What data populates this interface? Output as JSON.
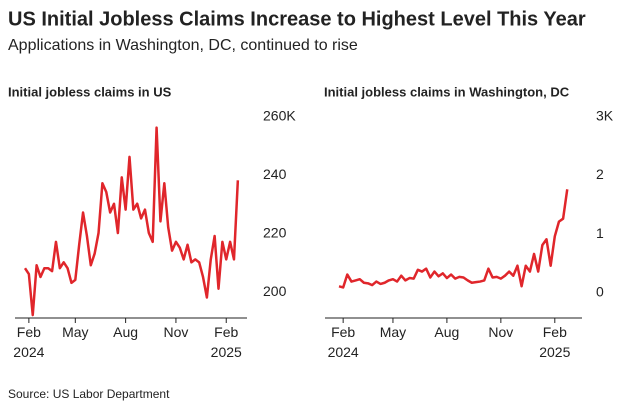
{
  "title": "US Initial Jobless Claims Increase to Highest Level This Year",
  "subtitle": "Applications in Washington, DC, continued to rise",
  "source": "Source: US Labor Department",
  "chart_data": [
    {
      "type": "line",
      "title": "Initial jobless claims in US",
      "color": "#e0262b",
      "categories": [
        null,
        "Feb 2024",
        null,
        null,
        null,
        null,
        null,
        null,
        null,
        null,
        null,
        null,
        null,
        "May",
        null,
        null,
        null,
        null,
        null,
        null,
        null,
        null,
        null,
        null,
        null,
        null,
        "Aug",
        null,
        null,
        null,
        null,
        null,
        null,
        null,
        null,
        null,
        null,
        null,
        null,
        "Nov",
        null,
        null,
        null,
        null,
        null,
        null,
        null,
        null,
        null,
        null,
        null,
        null,
        "Feb 2025",
        null,
        null,
        null
      ],
      "values": [
        210,
        208,
        194,
        211,
        207,
        210,
        210,
        209,
        219,
        210,
        212,
        210,
        205,
        206,
        218,
        229,
        221,
        211,
        215,
        222,
        239,
        236,
        229,
        232,
        222,
        241,
        230,
        248,
        230,
        232,
        227,
        230,
        222,
        219,
        258,
        226,
        239,
        224,
        216,
        219,
        217,
        213,
        218,
        212,
        213,
        212,
        207,
        200,
        213,
        221,
        203,
        219,
        213,
        219,
        213,
        240
      ],
      "ylim": [
        193,
        264
      ],
      "yticks": [
        200,
        220,
        240,
        {
          "value": 260,
          "label": "260K"
        }
      ]
    },
    {
      "type": "line",
      "title": "Initial jobless claims in Washington, DC",
      "color": "#e0262b",
      "categories": [
        null,
        "Feb 2024",
        null,
        null,
        null,
        null,
        null,
        null,
        null,
        null,
        null,
        null,
        null,
        "May",
        null,
        null,
        null,
        null,
        null,
        null,
        null,
        null,
        null,
        null,
        null,
        null,
        "Aug",
        null,
        null,
        null,
        null,
        null,
        null,
        null,
        null,
        null,
        null,
        null,
        null,
        "Nov",
        null,
        null,
        null,
        null,
        null,
        null,
        null,
        null,
        null,
        null,
        null,
        null,
        "Feb 2025",
        null,
        null,
        null
      ],
      "values": [
        0.2,
        0.18,
        0.4,
        0.28,
        0.3,
        0.32,
        0.26,
        0.25,
        0.22,
        0.28,
        0.24,
        0.26,
        0.3,
        0.32,
        0.28,
        0.38,
        0.3,
        0.34,
        0.33,
        0.48,
        0.45,
        0.5,
        0.35,
        0.45,
        0.37,
        0.42,
        0.34,
        0.4,
        0.33,
        0.36,
        0.35,
        0.3,
        0.26,
        0.27,
        0.28,
        0.3,
        0.5,
        0.35,
        0.36,
        0.33,
        0.38,
        0.45,
        0.38,
        0.55,
        0.2,
        0.55,
        0.45,
        0.75,
        0.45,
        0.9,
        1.0,
        0.55,
        1.05,
        1.3,
        1.35,
        1.85
      ],
      "ylim": [
        -0.34,
        3.2
      ],
      "yticks": [
        0,
        1,
        2,
        {
          "value": 3,
          "label": "3K"
        }
      ]
    }
  ]
}
